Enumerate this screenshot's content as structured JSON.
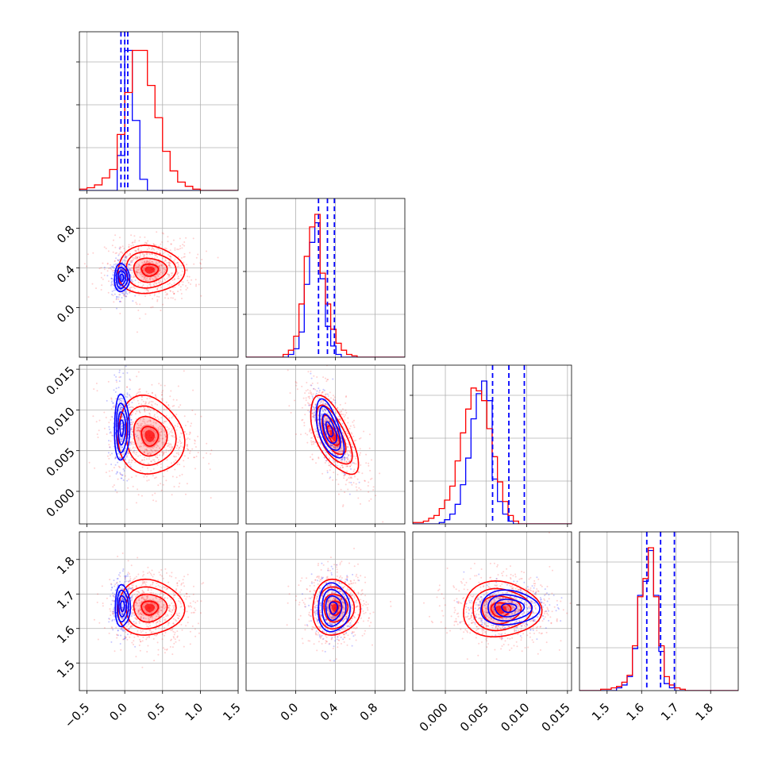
{
  "chart_data": {
    "type": "corner",
    "n_params": 4,
    "grid": true,
    "series": [
      {
        "color": "#0000ff",
        "role": "narrow posterior"
      },
      {
        "color": "#ff0000",
        "role": "wide posterior"
      }
    ],
    "axis_ranges": [
      [
        -0.6,
        1.5
      ],
      [
        -0.5,
        1.1
      ],
      [
        -0.004,
        0.0155
      ],
      [
        1.42,
        1.88
      ]
    ],
    "ticks": [
      [
        "−0.5",
        "0.0",
        "0.5",
        "1.0",
        "1.5"
      ],
      [
        "0.0",
        "0.4",
        "0.8"
      ],
      [
        "0.000",
        "0.005",
        "0.010",
        "0.015"
      ],
      [
        "1.5",
        "1.6",
        "1.7",
        "1.8"
      ]
    ],
    "tick_values": [
      [
        -0.5,
        0.0,
        0.5,
        1.0,
        1.5
      ],
      [
        0.0,
        0.4,
        0.8
      ],
      [
        0.0,
        0.005,
        0.01,
        0.015
      ],
      [
        1.5,
        1.6,
        1.7,
        1.8
      ]
    ],
    "quantile_lines_blue": [
      [
        -0.05,
        0.0,
        0.04
      ],
      [
        0.23,
        0.32,
        0.39
      ],
      [
        0.0058,
        0.0078,
        0.0097
      ],
      [
        1.615,
        1.655,
        1.695
      ]
    ],
    "histograms": {
      "blue": [
        {
          "edges_start": -0.6,
          "edges_step": 0.1,
          "counts": [
            0,
            0,
            0,
            0,
            0,
            25,
            100,
            50,
            8,
            0,
            0,
            0,
            0,
            0,
            0,
            0,
            0,
            0,
            0,
            0,
            0
          ]
        },
        {
          "edges_start": -0.5,
          "edges_step": 0.0533,
          "counts": [
            0,
            0,
            0,
            0,
            0,
            0,
            0,
            0,
            2,
            6,
            18,
            52,
            82,
            96,
            56,
            22,
            8,
            2,
            0,
            0,
            0,
            0,
            0,
            0,
            0,
            0,
            0,
            0,
            0,
            0
          ]
        },
        {
          "edges_start": -0.004,
          "edges_step": 0.00065,
          "counts": [
            0,
            0,
            0,
            0,
            0,
            1,
            3,
            7,
            14,
            28,
            47,
            75,
            93,
            102,
            88,
            32,
            16,
            7,
            2,
            0,
            0,
            0,
            0,
            0,
            0,
            0,
            0,
            0,
            0,
            0
          ]
        },
        {
          "edges_start": 1.42,
          "edges_step": 0.01533,
          "counts": [
            0,
            0,
            0,
            0,
            0,
            0,
            0,
            2,
            4,
            10,
            30,
            68,
            78,
            100,
            68,
            28,
            5,
            2,
            0,
            0,
            0,
            0,
            0,
            0,
            0,
            0,
            0,
            0,
            0,
            0
          ]
        }
      ],
      "red": [
        {
          "edges_start": -0.6,
          "edges_step": 0.1,
          "counts": [
            1,
            2,
            4,
            9,
            15,
            40,
            70,
            100,
            100,
            75,
            52,
            28,
            14,
            6,
            3,
            1,
            0,
            0,
            0,
            0,
            0
          ]
        },
        {
          "edges_start": -0.5,
          "edges_step": 0.0533,
          "counts": [
            0,
            0,
            0,
            0,
            0,
            0,
            0,
            2,
            5,
            15,
            38,
            72,
            93,
            102,
            60,
            38,
            20,
            10,
            5,
            2,
            1,
            0,
            0,
            0,
            0,
            0,
            0,
            0,
            0,
            0
          ]
        },
        {
          "edges_start": -0.004,
          "edges_step": 0.00065,
          "counts": [
            1,
            1,
            2,
            4,
            6,
            11,
            17,
            27,
            45,
            65,
            82,
            97,
            95,
            88,
            68,
            48,
            30,
            16,
            6,
            2,
            0,
            0,
            0,
            0,
            0,
            0,
            0,
            0,
            0,
            0
          ]
        },
        {
          "edges_start": 1.42,
          "edges_step": 0.01533,
          "counts": [
            0,
            0,
            0,
            0,
            1,
            1,
            2,
            3,
            6,
            11,
            32,
            67,
            80,
            102,
            67,
            32,
            10,
            4,
            2,
            1,
            0,
            0,
            0,
            0,
            0,
            0,
            0,
            0,
            0,
            0
          ]
        }
      ]
    },
    "pair_contours": {
      "blue": {
        "centers": {
          "1_0": [
            -0.04,
            0.3
          ],
          "2_0": [
            -0.04,
            0.0078
          ],
          "2_1": [
            0.34,
            0.0076
          ],
          "3_0": [
            -0.03,
            1.665
          ],
          "3_1": [
            0.38,
            1.66
          ],
          "3_2": [
            0.0078,
            1.66
          ]
        },
        "sigmas": {
          "1_0": [
            0.05,
            0.07
          ],
          "2_0": [
            0.05,
            0.002
          ],
          "2_1": [
            0.07,
            0.0018
          ],
          "3_0": [
            0.05,
            0.03
          ],
          "3_1": [
            0.08,
            0.035
          ],
          "3_2": [
            0.0018,
            0.025
          ]
        },
        "corr": {
          "1_0": 0.0,
          "2_0": 0.0,
          "2_1": -0.6,
          "3_0": 0.0,
          "3_1": 0.0,
          "3_2": 0.0
        }
      },
      "red": {
        "centers": {
          "1_0": [
            0.33,
            0.38
          ],
          "2_0": [
            0.33,
            0.0068
          ],
          "2_1": [
            0.38,
            0.0068
          ],
          "3_0": [
            0.33,
            1.66
          ],
          "3_1": [
            0.4,
            1.66
          ],
          "3_2": [
            0.0068,
            1.655
          ]
        },
        "sigmas": {
          "1_0": [
            0.22,
            0.12
          ],
          "2_0": [
            0.22,
            0.0024
          ],
          "2_1": [
            0.12,
            0.0024
          ],
          "3_0": [
            0.22,
            0.04
          ],
          "3_1": [
            0.12,
            0.04
          ],
          "3_2": [
            0.0024,
            0.04
          ]
        },
        "corr": {
          "1_0": 0.0,
          "2_0": -0.1,
          "2_1": -0.65,
          "3_0": 0.0,
          "3_1": 0.0,
          "3_2": 0.0
        }
      }
    },
    "contour_levels_sigma": [
      0.5,
      1.0,
      1.5,
      2.0
    ]
  }
}
